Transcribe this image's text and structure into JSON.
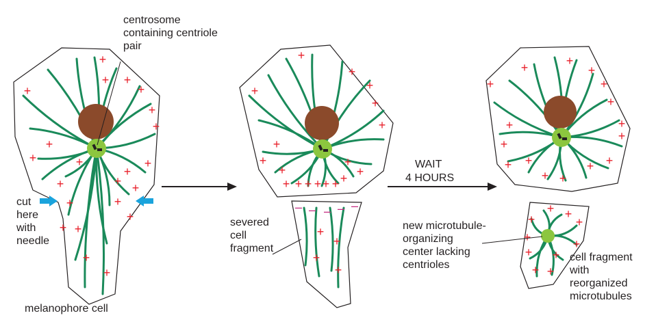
{
  "labels": {
    "centrosome": "centrosome\ncontaining centriole\npair",
    "cut": "cut\nhere\nwith\nneedle",
    "melanophore": "melanophore cell",
    "severed": "severed\ncell\nfragment",
    "wait": "WAIT",
    "hours": "4 HOURS",
    "new_mtoc": "new microtubule-\norganizing\ncenter lacking\ncentrioles",
    "reorganized": "cell fragment\nwith\nreorganized\nmicrotubules"
  },
  "symbols": {
    "plus": "+",
    "minus": "–"
  },
  "colors": {
    "outline": "#231f20",
    "microtubule": "#1a8a5a",
    "plus_end": "#e8202a",
    "minus_end": "#c4297f",
    "nucleus": "#8b4a2b",
    "centrosome": "#8cc63f",
    "cut_arrow": "#1aa3dc",
    "arrow": "#231f20"
  }
}
